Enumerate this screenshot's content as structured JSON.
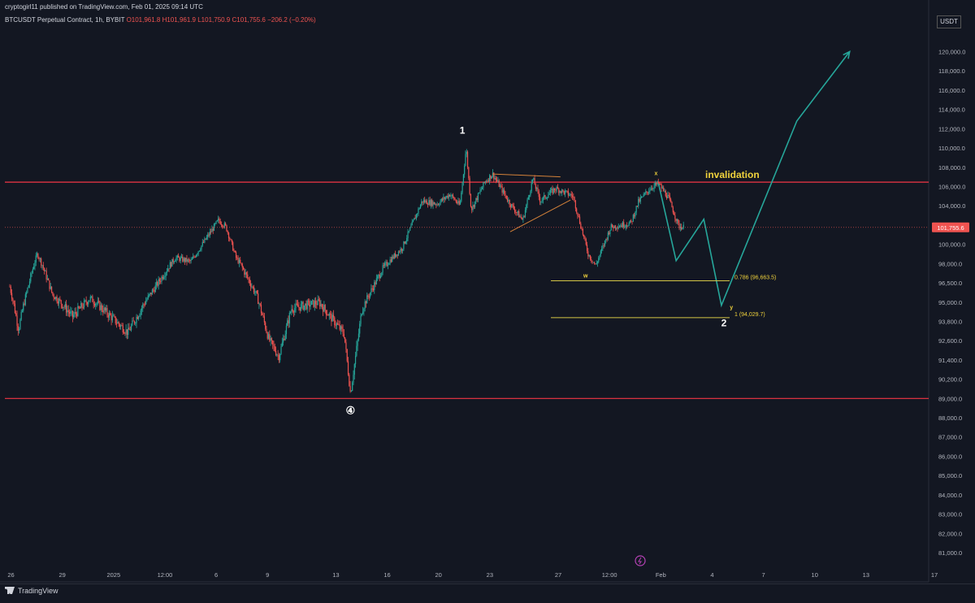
{
  "header": {
    "published": "cryptogirl11 published on TradingView.com, Feb 01, 2025 09:14 UTC",
    "symbol": "BTCUSDT Perpetual Contract, 1h, BYBIT",
    "open": "O101,961.8",
    "high": "H101,961.9",
    "low": "L101,750.9",
    "close": "C101,755.6",
    "change": "−206.2 (−0.20%)"
  },
  "currency_label": "USDT",
  "footer_brand": "TradingView",
  "colors": {
    "background": "#131722",
    "up_candle": "#26a69a",
    "down_candle": "#ef5350",
    "level_line": "#f23645",
    "projection": "#26a69a",
    "fib": "#d4c545",
    "trendline": "#d4823a",
    "annotation_yellow": "#f0d23c"
  },
  "chart_data": {
    "type": "candlestick",
    "symbol": "BTCUSDT",
    "interval": "1h",
    "scale": "log",
    "grid": false,
    "y_ticks": [
      "120,000.0",
      "118,000.0",
      "116,000.0",
      "114,000.0",
      "112,000.0",
      "110,000.0",
      "108,000.0",
      "106,000.0",
      "104,000.0",
      "102,000.0",
      "100,000.0",
      "98,000.0",
      "96,500.0",
      "95,000.0",
      "93,800.0",
      "92,600.0",
      "91,400.0",
      "90,200.0",
      "89,000.0",
      "88,000.0",
      "87,000.0",
      "86,000.0",
      "85,000.0",
      "84,000.0",
      "83,000.0",
      "82,000.0",
      "81,000.0"
    ],
    "x_ticks": [
      "26",
      "29",
      "2025",
      "12:00",
      "6",
      "9",
      "13",
      "16",
      "20",
      "23",
      "27",
      "12:00",
      "Feb",
      "4",
      "7",
      "10",
      "13",
      "17"
    ],
    "last_price_label": "101,755.6",
    "price_path": [
      {
        "t": 0,
        "p": 96200
      },
      {
        "t": 0.35,
        "p": 93300
      },
      {
        "t": 1.1,
        "p": 99000
      },
      {
        "t": 1.7,
        "p": 95600
      },
      {
        "t": 2.5,
        "p": 94100
      },
      {
        "t": 3.2,
        "p": 95300
      },
      {
        "t": 4.7,
        "p": 93100
      },
      {
        "t": 5.8,
        "p": 96200
      },
      {
        "t": 6.6,
        "p": 98600
      },
      {
        "t": 7.2,
        "p": 98200
      },
      {
        "t": 8.3,
        "p": 102500
      },
      {
        "t": 8.6,
        "p": 101800
      },
      {
        "t": 9.0,
        "p": 98600
      },
      {
        "t": 9.8,
        "p": 95600
      },
      {
        "t": 10.3,
        "p": 92700
      },
      {
        "t": 10.7,
        "p": 91600
      },
      {
        "t": 11.2,
        "p": 94600
      },
      {
        "t": 12.3,
        "p": 95000
      },
      {
        "t": 13.3,
        "p": 93000
      },
      {
        "t": 13.55,
        "p": 89300
      },
      {
        "t": 14.0,
        "p": 94500
      },
      {
        "t": 14.8,
        "p": 97500
      },
      {
        "t": 15.6,
        "p": 99600
      },
      {
        "t": 16.4,
        "p": 104500
      },
      {
        "t": 17.0,
        "p": 104200
      },
      {
        "t": 17.5,
        "p": 105200
      },
      {
        "t": 17.9,
        "p": 104000
      },
      {
        "t": 18.15,
        "p": 110000
      },
      {
        "t": 18.35,
        "p": 103600
      },
      {
        "t": 18.9,
        "p": 106500
      },
      {
        "t": 19.2,
        "p": 107300
      },
      {
        "t": 19.9,
        "p": 104200
      },
      {
        "t": 20.4,
        "p": 102500
      },
      {
        "t": 20.8,
        "p": 106800
      },
      {
        "t": 21.1,
        "p": 104500
      },
      {
        "t": 21.7,
        "p": 105800
      },
      {
        "t": 22.4,
        "p": 105000
      },
      {
        "t": 22.7,
        "p": 102000
      },
      {
        "t": 23.0,
        "p": 99000
      },
      {
        "t": 23.3,
        "p": 97800
      },
      {
        "t": 23.9,
        "p": 101800
      },
      {
        "t": 24.7,
        "p": 102200
      },
      {
        "t": 25.0,
        "p": 104400
      },
      {
        "t": 25.5,
        "p": 105900
      },
      {
        "t": 25.8,
        "p": 106300
      },
      {
        "t": 26.2,
        "p": 104800
      },
      {
        "t": 26.6,
        "p": 101900
      },
      {
        "t": 26.8,
        "p": 101755.6
      }
    ],
    "horizontal_levels": [
      {
        "price": 106450,
        "label": "invalidation"
      },
      {
        "price": 89000,
        "label": ""
      }
    ],
    "fib_levels": [
      {
        "price": 96663.5,
        "label": "0.786 (96,663.5)"
      },
      {
        "price": 94029.7,
        "label": "1 (94,029.7)"
      }
    ],
    "wave_labels": [
      {
        "label": "1",
        "t": 18.0,
        "p": 111500
      },
      {
        "label": "④",
        "t": 13.55,
        "p": 88200
      },
      {
        "label": "x",
        "t": 25.7,
        "p": 107200
      },
      {
        "label": "w",
        "t": 22.9,
        "p": 96900
      },
      {
        "label": "y",
        "t": 28.7,
        "p": 94550
      },
      {
        "label": "2",
        "t": 28.4,
        "p": 93500
      }
    ],
    "projection_path": [
      {
        "t": 25.8,
        "p": 106300
      },
      {
        "t": 26.5,
        "p": 98300
      },
      {
        "t": 27.6,
        "p": 102600
      },
      {
        "t": 28.3,
        "p": 94800
      },
      {
        "t": 31.3,
        "p": 112800
      },
      {
        "t": 33.4,
        "p": 120000
      }
    ],
    "triangle": {
      "upper": [
        {
          "t": 19.2,
          "p": 107300
        },
        {
          "t": 21.9,
          "p": 107000
        }
      ],
      "lower": [
        {
          "t": 19.9,
          "p": 101300
        },
        {
          "t": 22.3,
          "p": 104600
        }
      ]
    }
  }
}
